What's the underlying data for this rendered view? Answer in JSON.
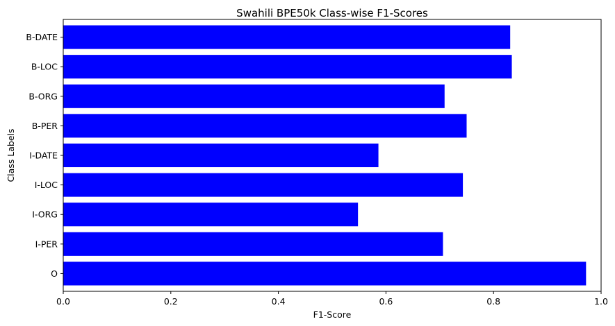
{
  "chart_data": {
    "type": "bar",
    "orientation": "horizontal",
    "title": "Swahili BPE50k Class-wise F1-Scores",
    "xlabel": "F1-Score",
    "ylabel": "Class Labels",
    "xlim": [
      0,
      1.0
    ],
    "x_ticks": [
      "0.0",
      "0.2",
      "0.4",
      "0.6",
      "0.8",
      "1.0"
    ],
    "grid": false,
    "bar_color": "#0000ff",
    "categories": [
      "O",
      "I-PER",
      "I-ORG",
      "I-LOC",
      "I-DATE",
      "B-PER",
      "B-ORG",
      "B-LOC",
      "B-DATE"
    ],
    "values": [
      0.972,
      0.706,
      0.548,
      0.743,
      0.586,
      0.75,
      0.709,
      0.834,
      0.831
    ]
  }
}
